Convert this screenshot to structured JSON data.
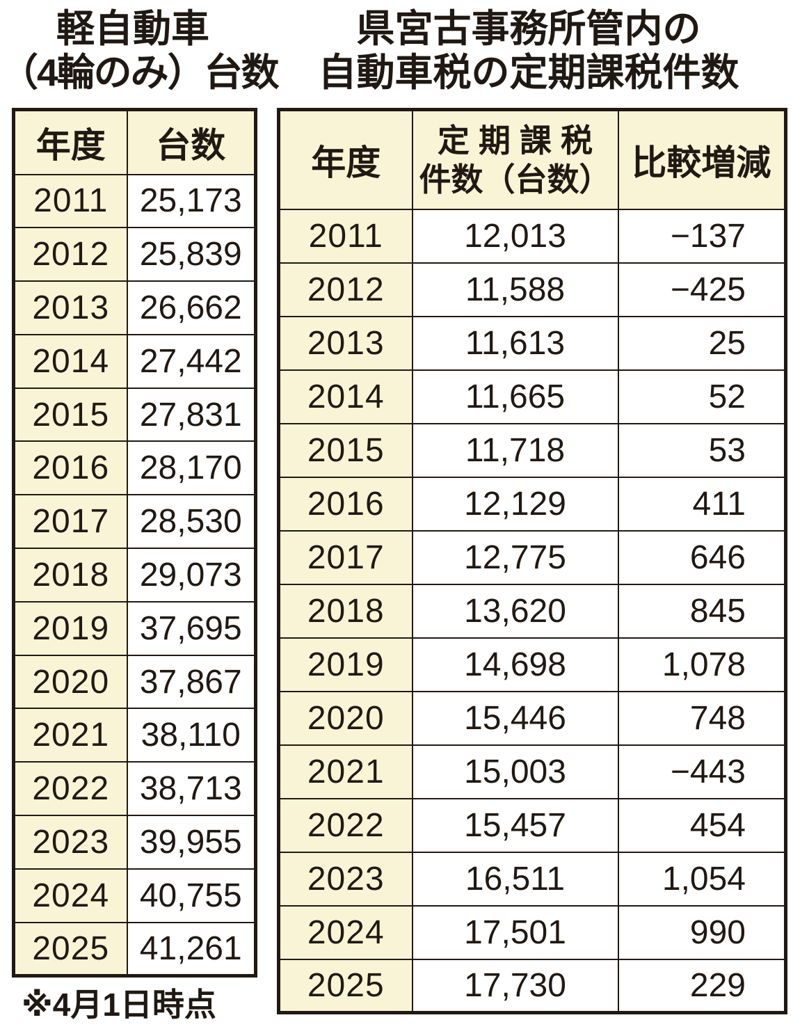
{
  "colors": {
    "cell_cream": "#faf4d6",
    "cell_white": "#ffffff",
    "border": "#201913",
    "text": "#201913",
    "page_bg": "#ffffff"
  },
  "left_table": {
    "title": [
      "軽自動車",
      "（4輪のみ）台数"
    ],
    "header": {
      "year": "年度",
      "count": "台数"
    },
    "rows": [
      {
        "year": "2011",
        "count": "25,173"
      },
      {
        "year": "2012",
        "count": "25,839"
      },
      {
        "year": "2013",
        "count": "26,662"
      },
      {
        "year": "2014",
        "count": "27,442"
      },
      {
        "year": "2015",
        "count": "27,831"
      },
      {
        "year": "2016",
        "count": "28,170"
      },
      {
        "year": "2017",
        "count": "28,530"
      },
      {
        "year": "2018",
        "count": "29,073"
      },
      {
        "year": "2019",
        "count": "37,695"
      },
      {
        "year": "2020",
        "count": "37,867"
      },
      {
        "year": "2021",
        "count": "38,110"
      },
      {
        "year": "2022",
        "count": "38,713"
      },
      {
        "year": "2023",
        "count": "39,955"
      },
      {
        "year": "2024",
        "count": "40,755"
      },
      {
        "year": "2025",
        "count": "41,261"
      }
    ],
    "footnote": "※4月1日時点"
  },
  "right_table": {
    "title": [
      "県宮古事務所管内の",
      "自動車税の定期課税件数"
    ],
    "header": {
      "year": "年度",
      "count_line1": "定期課税",
      "count_line2": "件数（台数）",
      "diff": "比較増減"
    },
    "rows": [
      {
        "year": "2011",
        "count": "12,013",
        "diff": "−137"
      },
      {
        "year": "2012",
        "count": "11,588",
        "diff": "−425"
      },
      {
        "year": "2013",
        "count": "11,613",
        "diff": "25"
      },
      {
        "year": "2014",
        "count": "11,665",
        "diff": "52"
      },
      {
        "year": "2015",
        "count": "11,718",
        "diff": "53"
      },
      {
        "year": "2016",
        "count": "12,129",
        "diff": "411"
      },
      {
        "year": "2017",
        "count": "12,775",
        "diff": "646"
      },
      {
        "year": "2018",
        "count": "13,620",
        "diff": "845"
      },
      {
        "year": "2019",
        "count": "14,698",
        "diff": "1,078"
      },
      {
        "year": "2020",
        "count": "15,446",
        "diff": "748"
      },
      {
        "year": "2021",
        "count": "15,003",
        "diff": "−443"
      },
      {
        "year": "2022",
        "count": "15,457",
        "diff": "454"
      },
      {
        "year": "2023",
        "count": "16,511",
        "diff": "1,054"
      },
      {
        "year": "2024",
        "count": "17,501",
        "diff": "990"
      },
      {
        "year": "2025",
        "count": "17,730",
        "diff": "229"
      }
    ]
  },
  "chart_data": [
    {
      "type": "table",
      "title": "軽自動車（4輪のみ）台数",
      "columns": [
        "年度",
        "台数"
      ],
      "years": [
        2011,
        2012,
        2013,
        2014,
        2015,
        2016,
        2017,
        2018,
        2019,
        2020,
        2021,
        2022,
        2023,
        2024,
        2025
      ],
      "values": [
        25173,
        25839,
        26662,
        27442,
        27831,
        28170,
        28530,
        29073,
        37695,
        37867,
        38110,
        38713,
        39955,
        40755,
        41261
      ],
      "note": "※4月1日時点"
    },
    {
      "type": "table",
      "title": "県宮古事務所管内の自動車税の定期課税件数",
      "columns": [
        "年度",
        "定期課税件数（台数）",
        "比較増減"
      ],
      "years": [
        2011,
        2012,
        2013,
        2014,
        2015,
        2016,
        2017,
        2018,
        2019,
        2020,
        2021,
        2022,
        2023,
        2024,
        2025
      ],
      "counts": [
        12013,
        11588,
        11613,
        11665,
        11718,
        12129,
        12775,
        13620,
        14698,
        15446,
        15003,
        15457,
        16511,
        17501,
        17730
      ],
      "diffs": [
        -137,
        -425,
        25,
        52,
        53,
        411,
        646,
        845,
        1078,
        748,
        -443,
        454,
        1054,
        990,
        229
      ]
    }
  ]
}
